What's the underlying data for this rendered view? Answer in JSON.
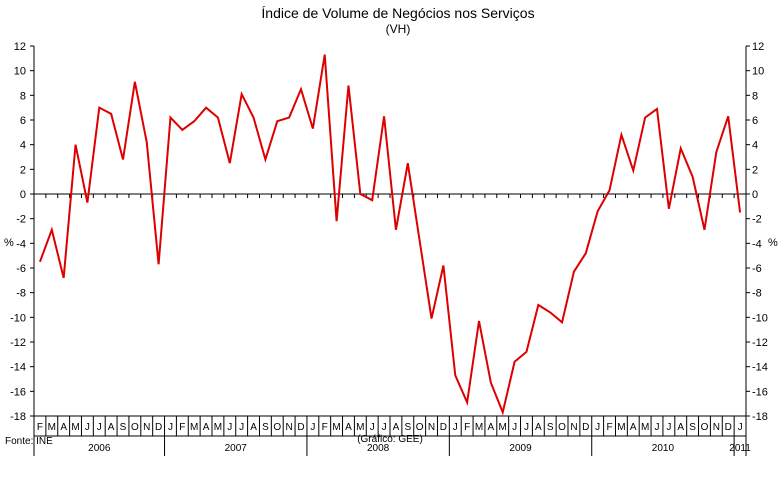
{
  "chart_data": {
    "type": "line",
    "title": "Índice de Volume de Negócios nos Serviços",
    "subtitle": "(VH)",
    "ylabel_left": "%",
    "ylabel_right": "%",
    "ylim": [
      -18,
      12
    ],
    "y_ticks": [
      "12",
      "10",
      "8",
      "6",
      "4",
      "2",
      "0",
      "-2",
      "-4",
      "-6",
      "-8",
      "-10",
      "-12",
      "-14",
      "-16",
      "-18"
    ],
    "y_tick_values": [
      12,
      10,
      8,
      6,
      4,
      2,
      0,
      -2,
      -4,
      -6,
      -8,
      -10,
      -12,
      -14,
      -16,
      -18
    ],
    "month_labels": [
      "F",
      "M",
      "A",
      "M",
      "J",
      "J",
      "A",
      "S",
      "O",
      "N",
      "D",
      "J",
      "F",
      "M",
      "A",
      "M",
      "J",
      "J",
      "A",
      "S",
      "O",
      "N",
      "D",
      "J",
      "F",
      "M",
      "A",
      "M",
      "J",
      "J",
      "A",
      "S",
      "O",
      "N",
      "D",
      "J",
      "F",
      "M",
      "A",
      "M",
      "J",
      "J",
      "A",
      "S",
      "O",
      "N",
      "D",
      "J",
      "F",
      "M",
      "A",
      "M",
      "J",
      "J",
      "A",
      "S",
      "O",
      "N",
      "D",
      "J"
    ],
    "years": [
      {
        "label": "2006",
        "start": 0,
        "end": 10
      },
      {
        "label": "2007",
        "start": 11,
        "end": 22
      },
      {
        "label": "2008",
        "start": 23,
        "end": 34
      },
      {
        "label": "2009",
        "start": 35,
        "end": 46
      },
      {
        "label": "2010",
        "start": 47,
        "end": 58
      },
      {
        "label": "2011",
        "start": 59,
        "end": 59
      }
    ],
    "grid": false,
    "series": [
      {
        "color": "#dd0000",
        "values": [
          -5.5,
          -2.9,
          -6.8,
          4.0,
          -0.7,
          7.0,
          6.5,
          2.8,
          9.1,
          4.2,
          -5.7,
          6.2,
          5.2,
          5.9,
          7.0,
          6.2,
          2.5,
          8.1,
          6.2,
          2.8,
          5.9,
          6.2,
          8.5,
          5.3,
          11.3,
          -2.2,
          8.8,
          0.0,
          -0.5,
          6.3,
          -2.9,
          2.5,
          -3.8,
          -10.1,
          -5.8,
          -14.7,
          -16.9,
          -10.3,
          -15.3,
          -17.7,
          -13.6,
          -12.8,
          -9.0,
          -9.6,
          -10.4,
          -6.3,
          -4.8,
          -1.4,
          0.3,
          4.8,
          1.9,
          6.2,
          6.9,
          -1.2,
          3.7,
          1.4,
          -2.9,
          3.4,
          6.3,
          -1.5
        ]
      }
    ]
  },
  "footer": {
    "source": "Fonte: INE",
    "credit": "(Gráfico: GEE)"
  }
}
